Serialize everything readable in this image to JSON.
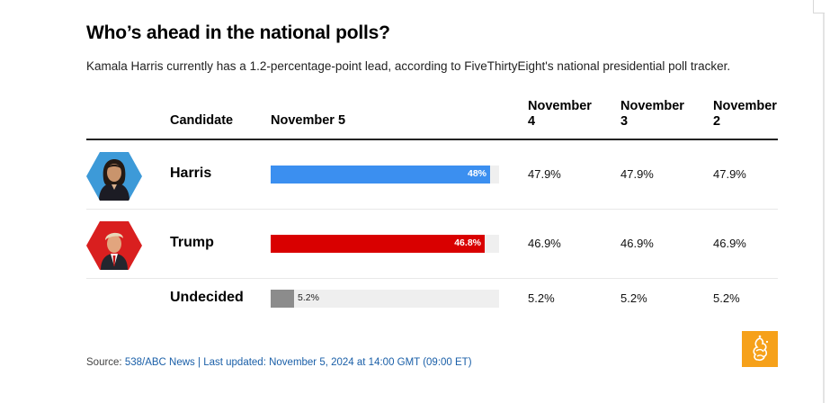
{
  "title": "Who’s ahead in the national polls?",
  "subtitle": "Kamala Harris currently has a 1.2-percentage-point lead, according to FiveThirtyEight's national presidential poll tracker.",
  "columns": {
    "candidate": "Candidate",
    "current": "November 5",
    "prior": [
      {
        "line1": "November",
        "line2": "4"
      },
      {
        "line1": "November",
        "line2": "3"
      },
      {
        "line1": "November",
        "line2": "2"
      }
    ]
  },
  "colors": {
    "harris": "#3b8ff0",
    "trump": "#d90000",
    "undecided": "#8c8c8c",
    "track": "#efefef",
    "accent": "#f6a11a"
  },
  "chart_data": {
    "type": "bar",
    "categories": [
      "Harris",
      "Trump",
      "Undecided"
    ],
    "values": [
      48,
      46.8,
      5.2
    ],
    "value_labels": [
      "48%",
      "46.8%",
      "5.2%"
    ],
    "xlim": [
      0,
      50
    ],
    "title": "Who’s ahead in the national polls?",
    "series_name": "November 5"
  },
  "rows": [
    {
      "name": "Harris",
      "avatar": "harris-portrait",
      "values": [
        "47.9%",
        "47.9%",
        "47.9%"
      ]
    },
    {
      "name": "Trump",
      "avatar": "trump-portrait",
      "values": [
        "46.9%",
        "46.9%",
        "46.9%"
      ]
    },
    {
      "name": "Undecided",
      "avatar": "",
      "values": [
        "5.2%",
        "5.2%",
        "5.2%"
      ]
    }
  ],
  "source": {
    "prefix": "Source: ",
    "link1": "538/ABC News",
    "sep": " | ",
    "link2": "Last updated: November 5, 2024 at 14:00 GMT (09:00 ET)"
  },
  "logo": "al-jazeera-logo-icon"
}
